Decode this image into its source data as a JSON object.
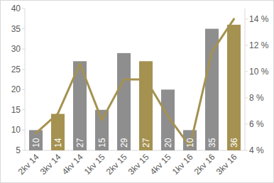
{
  "chart_data": {
    "type": "bar",
    "categories": [
      "2kv 14",
      "3kv 14",
      "4kv 14",
      "1kv 15",
      "2kv 15",
      "3kv 15",
      "4kv 15",
      "1kv 16",
      "2kv 16",
      "3kv 16"
    ],
    "series": [
      {
        "type": "bar",
        "colors": [
          "#8e8e8e",
          "#a59251",
          "#8e8e8e",
          "#8e8e8e",
          "#8e8e8e",
          "#a59251",
          "#8e8e8e",
          "#8e8e8e",
          "#8e8e8e",
          "#a59251"
        ],
        "values": [
          10,
          14,
          27,
          15,
          29,
          27,
          20,
          10,
          35,
          36
        ]
      },
      {
        "type": "line",
        "axis": "y2",
        "color": "#a59251",
        "values": [
          5.3,
          6.8,
          10.6,
          6.3,
          9.4,
          9.4,
          6.6,
          4.3,
          11.5,
          14.0
        ]
      }
    ],
    "ylim": [
      5,
      40
    ],
    "yticks": [
      5,
      10,
      15,
      20,
      25,
      30,
      35,
      40
    ],
    "y2lim": [
      4,
      14.8
    ],
    "y2ticks": [
      {
        "value": 4,
        "label": "4 %"
      },
      {
        "value": 6,
        "label": "6 %"
      },
      {
        "value": 8,
        "label": "8 %"
      },
      {
        "value": 10,
        "label": "10 %"
      },
      {
        "value": 12,
        "label": "12 %"
      },
      {
        "value": 14,
        "label": "14 %"
      }
    ],
    "data_labels": true,
    "grid": false
  }
}
